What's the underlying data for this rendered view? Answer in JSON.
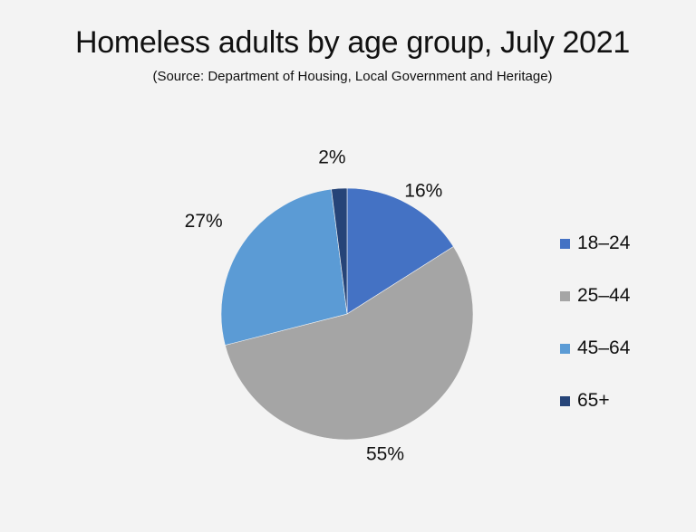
{
  "chart_data": {
    "type": "pie",
    "title": "Homeless adults by age group, July 2021",
    "subtitle": "(Source: Department of Housing, Local Government and Heritage)",
    "categories": [
      "18–24",
      "25–44",
      "45–64",
      "65+"
    ],
    "values": [
      16,
      55,
      27,
      2
    ],
    "labels": [
      "16%",
      "55%",
      "27%",
      "2%"
    ],
    "colors": [
      "#4472c4",
      "#a5a5a5",
      "#5b9bd5",
      "#264478"
    ],
    "start_angle_deg": 0,
    "direction": "clockwise",
    "legend_position": "right"
  }
}
